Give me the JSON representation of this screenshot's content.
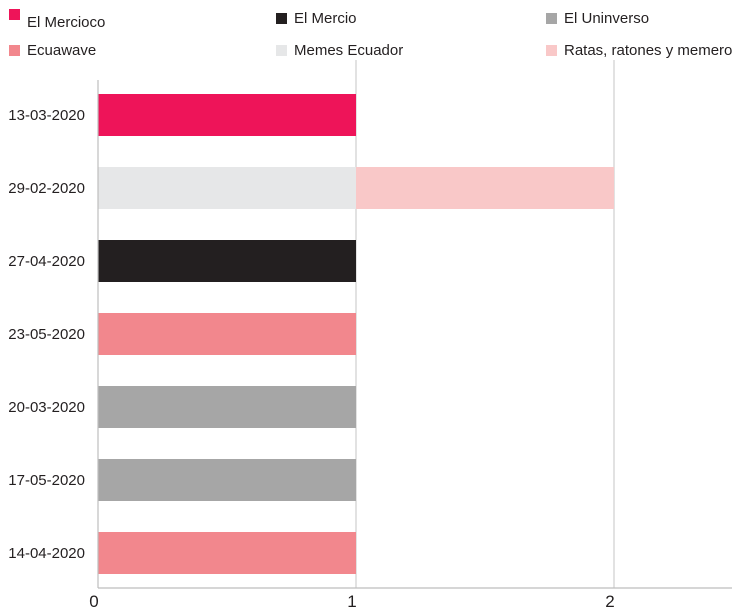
{
  "chart_data": {
    "type": "bar",
    "orientation": "horizontal",
    "stacked": true,
    "categories": [
      "13-03-2020",
      "29-02-2020",
      "27-04-2020",
      "23-05-2020",
      "20-03-2020",
      "17-05-2020",
      "14-04-2020"
    ],
    "series": [
      {
        "name": "El Mercioco",
        "color": "#ee1459",
        "values": [
          1,
          0,
          0,
          0,
          0,
          0,
          0
        ]
      },
      {
        "name": "El Mercio",
        "color": "#231f20",
        "values": [
          0,
          0,
          1,
          0,
          0,
          0,
          0
        ]
      },
      {
        "name": "El Uninverso",
        "color": "#a6a6a6",
        "values": [
          0,
          0,
          0,
          0,
          1,
          1,
          0
        ]
      },
      {
        "name": "Ecuawave",
        "color": "#f2878d",
        "values": [
          0,
          0,
          0,
          1,
          0,
          0,
          1
        ]
      },
      {
        "name": "Memes Ecuador",
        "color": "#e6e7e8",
        "values": [
          0,
          1,
          0,
          0,
          0,
          0,
          0
        ]
      },
      {
        "name": "Ratas, ratones y memeros",
        "color": "#f9c8c8",
        "values": [
          0,
          1,
          0,
          0,
          0,
          0,
          0
        ]
      }
    ],
    "x_ticks": [
      "0",
      "1",
      "2"
    ],
    "xlim": [
      0,
      2.5
    ],
    "grid": true,
    "legend_position": "top"
  }
}
